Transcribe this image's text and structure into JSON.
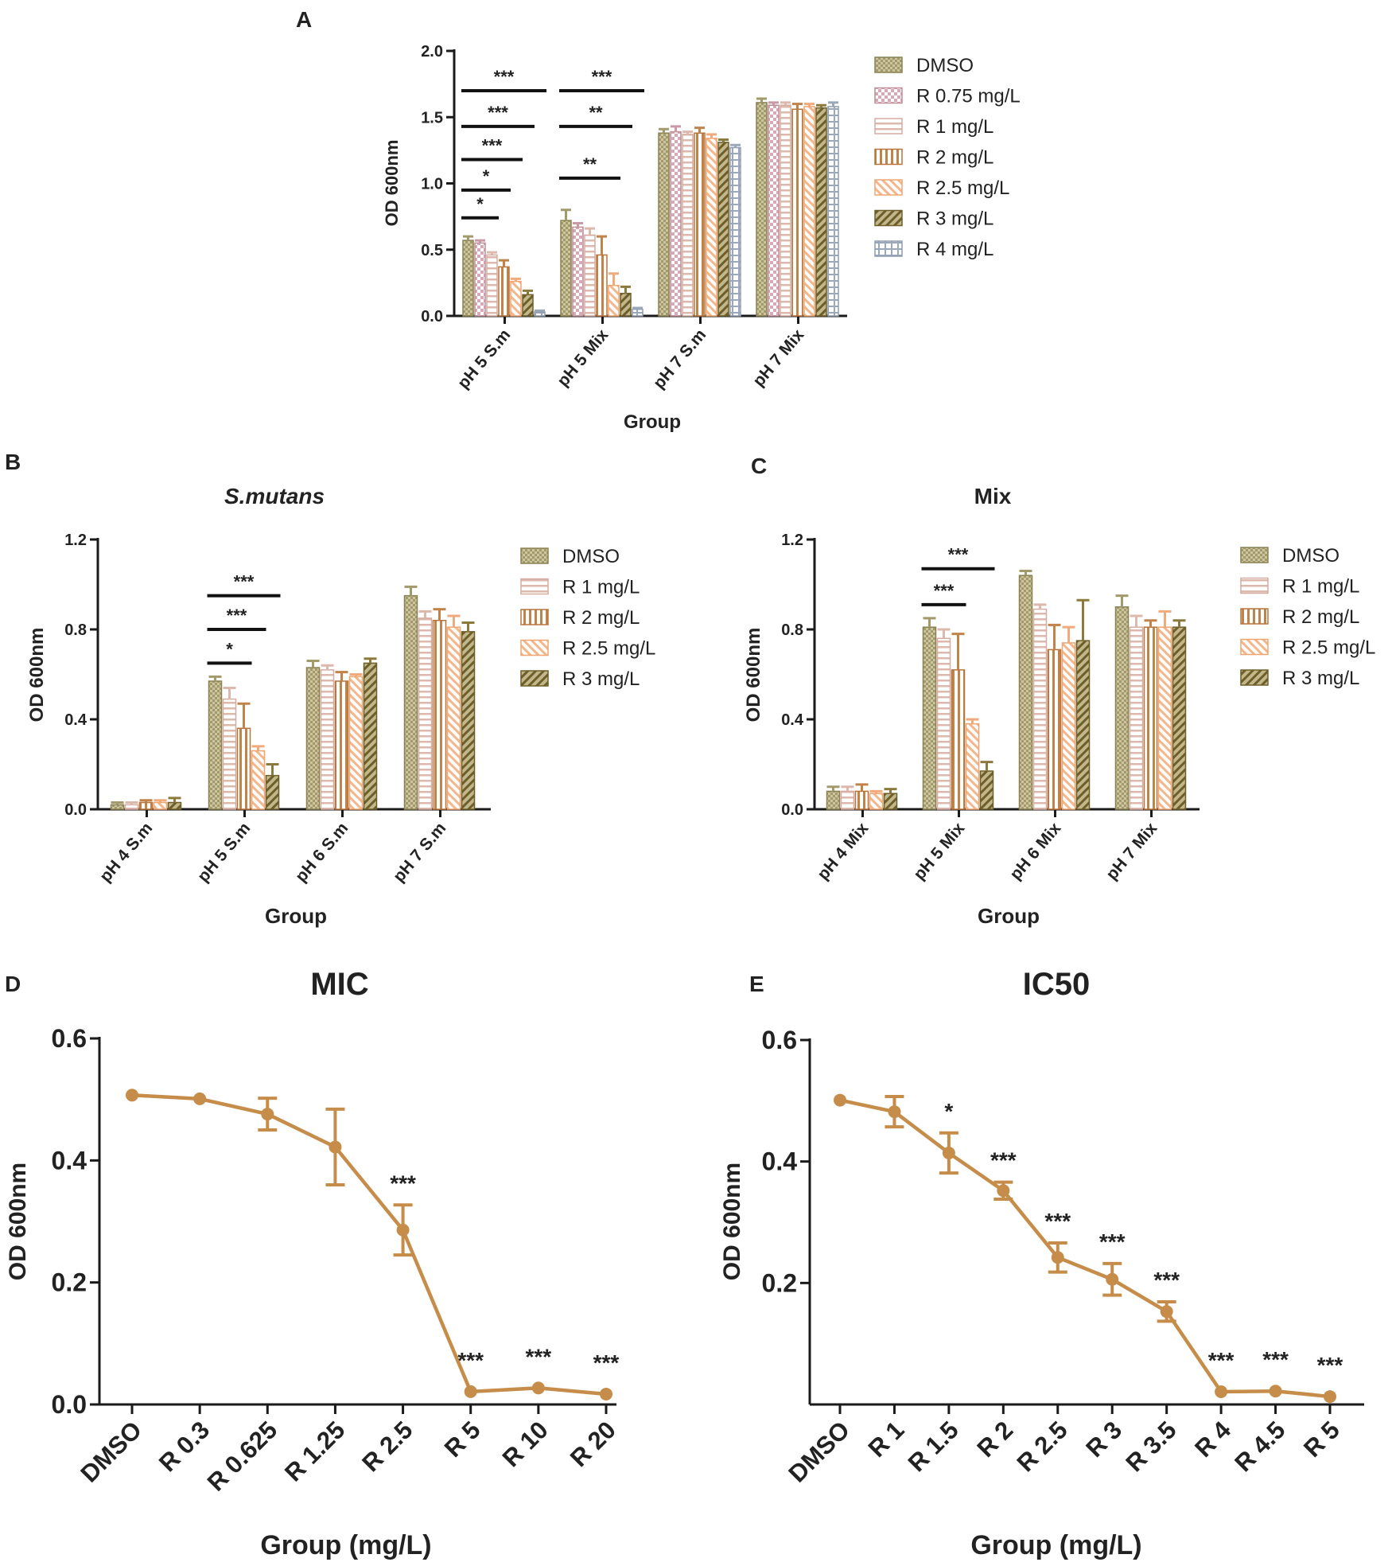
{
  "figure": {
    "panel_letters": [
      "A",
      "B",
      "C",
      "D",
      "E"
    ]
  },
  "colors": {
    "DMSO": "#a39a6b",
    "R 0.75 mg/L": "#c99aa6",
    "R 1 mg/L": "#ddb8ad",
    "R 2 mg/L": "#c0834a",
    "R 2.5 mg/L": "#f0aa7c",
    "R 3 mg/L": "#8c7a3c",
    "R 4 mg/L": "#9ba8ba",
    "line": "#c68d4a"
  },
  "chart_data": [
    {
      "panel": "A",
      "type": "bar",
      "title": "",
      "xlabel": "Group",
      "ylabel": "OD 600nm",
      "ylim": [
        0,
        2.0
      ],
      "yticks": [
        "0.0",
        "0.5",
        "1.0",
        "1.5",
        "2.0"
      ],
      "categories": [
        "pH 5 S.m",
        "pH 5 Mix",
        "pH 7 S.m",
        "pH 7 Mix"
      ],
      "legend": "top-right",
      "series": [
        {
          "name": "DMSO",
          "values": [
            0.57,
            0.72,
            1.38,
            1.61
          ],
          "errors": [
            0.03,
            0.08,
            0.03,
            0.03
          ]
        },
        {
          "name": "R 0.75 mg/L",
          "values": [
            0.55,
            0.67,
            1.39,
            1.59
          ],
          "errors": [
            0.02,
            0.03,
            0.04,
            0.02
          ]
        },
        {
          "name": "R 1 mg/L",
          "values": [
            0.46,
            0.61,
            1.37,
            1.59
          ],
          "errors": [
            0.02,
            0.05,
            0.02,
            0.02
          ]
        },
        {
          "name": "R 2 mg/L",
          "values": [
            0.37,
            0.46,
            1.38,
            1.56
          ],
          "errors": [
            0.05,
            0.14,
            0.04,
            0.04
          ]
        },
        {
          "name": "R 2.5 mg/L",
          "values": [
            0.26,
            0.23,
            1.34,
            1.58
          ],
          "errors": [
            0.02,
            0.09,
            0.03,
            0.02
          ]
        },
        {
          "name": "R 3 mg/L",
          "values": [
            0.16,
            0.17,
            1.31,
            1.57
          ],
          "errors": [
            0.03,
            0.05,
            0.02,
            0.02
          ]
        },
        {
          "name": "R 4 mg/L",
          "values": [
            0.03,
            0.05,
            1.27,
            1.58
          ],
          "errors": [
            0.01,
            0.01,
            0.02,
            0.03
          ]
        }
      ],
      "significance": [
        {
          "category": "pH 5 S.m",
          "from": "DMSO",
          "to": "R 4 mg/L",
          "label": "***",
          "y": 1.7
        },
        {
          "category": "pH 5 S.m",
          "from": "DMSO",
          "to": "R 3 mg/L",
          "label": "***",
          "y": 1.43
        },
        {
          "category": "pH 5 S.m",
          "from": "DMSO",
          "to": "R 2.5 mg/L",
          "label": "***",
          "y": 1.18
        },
        {
          "category": "pH 5 S.m",
          "from": "DMSO",
          "to": "R 2 mg/L",
          "label": "*",
          "y": 0.95
        },
        {
          "category": "pH 5 S.m",
          "from": "DMSO",
          "to": "R 1 mg/L",
          "label": "*",
          "y": 0.74
        },
        {
          "category": "pH 5 Mix",
          "from": "DMSO",
          "to": "R 4 mg/L",
          "label": "***",
          "y": 1.7
        },
        {
          "category": "pH 5 Mix",
          "from": "DMSO",
          "to": "R 3 mg/L",
          "label": "**",
          "y": 1.43
        },
        {
          "category": "pH 5 Mix",
          "from": "DMSO",
          "to": "R 2.5 mg/L",
          "label": "**",
          "y": 1.04
        }
      ]
    },
    {
      "panel": "B",
      "type": "bar",
      "title": "S.mutans",
      "xlabel": "Group",
      "ylabel": "OD 600nm",
      "ylim": [
        0,
        1.2
      ],
      "yticks": [
        "0.0",
        "0.4",
        "0.8",
        "1.2"
      ],
      "categories": [
        "pH 4 S.m",
        "pH 5 S.m",
        "pH 6 S.m",
        "pH 7 S.m"
      ],
      "legend": "right",
      "series": [
        {
          "name": "DMSO",
          "values": [
            0.02,
            0.57,
            0.63,
            0.95
          ],
          "errors": [
            0.01,
            0.02,
            0.03,
            0.04
          ]
        },
        {
          "name": "R 1 mg/L",
          "values": [
            0.02,
            0.49,
            0.62,
            0.85
          ],
          "errors": [
            0.01,
            0.05,
            0.02,
            0.03
          ]
        },
        {
          "name": "R 2 mg/L",
          "values": [
            0.03,
            0.36,
            0.57,
            0.84
          ],
          "errors": [
            0.01,
            0.11,
            0.04,
            0.05
          ]
        },
        {
          "name": "R 2.5 mg/L",
          "values": [
            0.03,
            0.26,
            0.59,
            0.81
          ],
          "errors": [
            0.01,
            0.02,
            0.01,
            0.05
          ]
        },
        {
          "name": "R 3 mg/L",
          "values": [
            0.03,
            0.15,
            0.65,
            0.79
          ],
          "errors": [
            0.02,
            0.05,
            0.02,
            0.04
          ]
        }
      ],
      "significance": [
        {
          "category": "pH 5 S.m",
          "from": "DMSO",
          "to": "R 3 mg/L",
          "label": "***",
          "y": 0.95
        },
        {
          "category": "pH 5 S.m",
          "from": "DMSO",
          "to": "R 2.5 mg/L",
          "label": "***",
          "y": 0.8
        },
        {
          "category": "pH 5 S.m",
          "from": "DMSO",
          "to": "R 2 mg/L",
          "label": "*",
          "y": 0.65
        }
      ]
    },
    {
      "panel": "C",
      "type": "bar",
      "title": "Mix",
      "xlabel": "Group",
      "ylabel": "OD 600nm",
      "ylim": [
        0,
        1.2
      ],
      "yticks": [
        "0.0",
        "0.4",
        "0.8",
        "1.2"
      ],
      "categories": [
        "pH 4 Mix",
        "pH 5 Mix",
        "pH 6 Mix",
        "pH 7 Mix"
      ],
      "legend": "right",
      "series": [
        {
          "name": "DMSO",
          "values": [
            0.08,
            0.81,
            1.04,
            0.9
          ],
          "errors": [
            0.02,
            0.04,
            0.02,
            0.05
          ]
        },
        {
          "name": "R 1 mg/L",
          "values": [
            0.08,
            0.76,
            0.89,
            0.81
          ],
          "errors": [
            0.02,
            0.04,
            0.02,
            0.05
          ]
        },
        {
          "name": "R 2 mg/L",
          "values": [
            0.08,
            0.62,
            0.71,
            0.81
          ],
          "errors": [
            0.03,
            0.16,
            0.11,
            0.03
          ]
        },
        {
          "name": "R 2.5 mg/L",
          "values": [
            0.07,
            0.38,
            0.74,
            0.81
          ],
          "errors": [
            0.01,
            0.02,
            0.07,
            0.07
          ]
        },
        {
          "name": "R 3 mg/L",
          "values": [
            0.07,
            0.17,
            0.75,
            0.81
          ],
          "errors": [
            0.02,
            0.04,
            0.18,
            0.03
          ]
        }
      ],
      "significance": [
        {
          "category": "pH 5 Mix",
          "from": "DMSO",
          "to": "R 3 mg/L",
          "label": "***",
          "y": 1.07
        },
        {
          "category": "pH 5 Mix",
          "from": "DMSO",
          "to": "R 2 mg/L",
          "label": "***",
          "y": 0.91
        }
      ]
    },
    {
      "panel": "D",
      "type": "line",
      "title": "MIC",
      "xlabel": "Group (mg/L)",
      "ylabel": "OD 600nm",
      "ylim": [
        0,
        0.6
      ],
      "yticks": [
        "0.0",
        "0.2",
        "0.4",
        "0.6"
      ],
      "categories": [
        "DMSO",
        "R 0.3",
        "R 0.625",
        "R 1.25",
        "R 2.5",
        "R 5",
        "R 10",
        "R 20"
      ],
      "values": [
        0.507,
        0.501,
        0.476,
        0.422,
        0.286,
        0.021,
        0.027,
        0.017
      ],
      "errors": [
        0.004,
        0.004,
        0.026,
        0.062,
        0.041,
        0.004,
        0.004,
        0.003
      ],
      "annotations": [
        "",
        "",
        "",
        "",
        "***",
        "***",
        "***",
        "***"
      ]
    },
    {
      "panel": "E",
      "type": "line",
      "title": "IC50",
      "xlabel": "Group (mg/L)",
      "ylabel": "OD 600nm",
      "ylim": [
        0,
        0.6
      ],
      "yticks": [
        "0.2",
        "0.4",
        "0.6"
      ],
      "categories": [
        "DMSO",
        "R 1",
        "R 1.5",
        "R 2",
        "R 2.5",
        "R 3",
        "R 3.5",
        "R 4",
        "R 4.5",
        "R 5"
      ],
      "values": [
        0.501,
        0.482,
        0.414,
        0.352,
        0.242,
        0.206,
        0.153,
        0.021,
        0.022,
        0.013
      ],
      "errors": [
        0.003,
        0.025,
        0.033,
        0.014,
        0.024,
        0.026,
        0.016,
        0.003,
        0.003,
        0.003
      ],
      "annotations": [
        "",
        "",
        "*",
        "***",
        "***",
        "***",
        "***",
        "***",
        "***",
        "***"
      ]
    }
  ]
}
